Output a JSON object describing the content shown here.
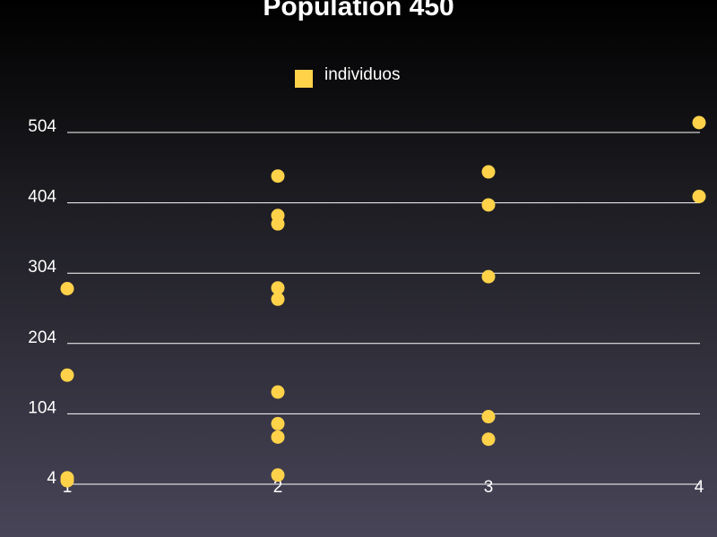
{
  "chart_data": {
    "type": "scatter",
    "title": "Population 450",
    "xlabel": "",
    "ylabel": "",
    "xlim": [
      1,
      4
    ],
    "ylim": [
      4,
      504
    ],
    "x_ticks": [
      "1",
      "2",
      "3",
      "4"
    ],
    "y_ticks": [
      "4",
      "104",
      "204",
      "304",
      "404",
      "504"
    ],
    "grid": true,
    "legend_position": "top-center",
    "series": [
      {
        "name": "individuos",
        "color": "#ffd24a",
        "points": [
          {
            "x": 1,
            "y": 9
          },
          {
            "x": 1,
            "y": 13
          },
          {
            "x": 1,
            "y": 159
          },
          {
            "x": 1,
            "y": 282
          },
          {
            "x": 2,
            "y": 17
          },
          {
            "x": 2,
            "y": 71
          },
          {
            "x": 2,
            "y": 90
          },
          {
            "x": 2,
            "y": 135
          },
          {
            "x": 2,
            "y": 267
          },
          {
            "x": 2,
            "y": 283
          },
          {
            "x": 2,
            "y": 374
          },
          {
            "x": 2,
            "y": 386
          },
          {
            "x": 2,
            "y": 442
          },
          {
            "x": 3,
            "y": 68
          },
          {
            "x": 3,
            "y": 100
          },
          {
            "x": 3,
            "y": 299
          },
          {
            "x": 3,
            "y": 401
          },
          {
            "x": 3,
            "y": 448
          },
          {
            "x": 4,
            "y": 413
          },
          {
            "x": 4,
            "y": 518
          }
        ]
      }
    ]
  },
  "colors": {
    "grid": "#ffffff",
    "marker": "#ffd24a",
    "text": "#ffffff"
  }
}
